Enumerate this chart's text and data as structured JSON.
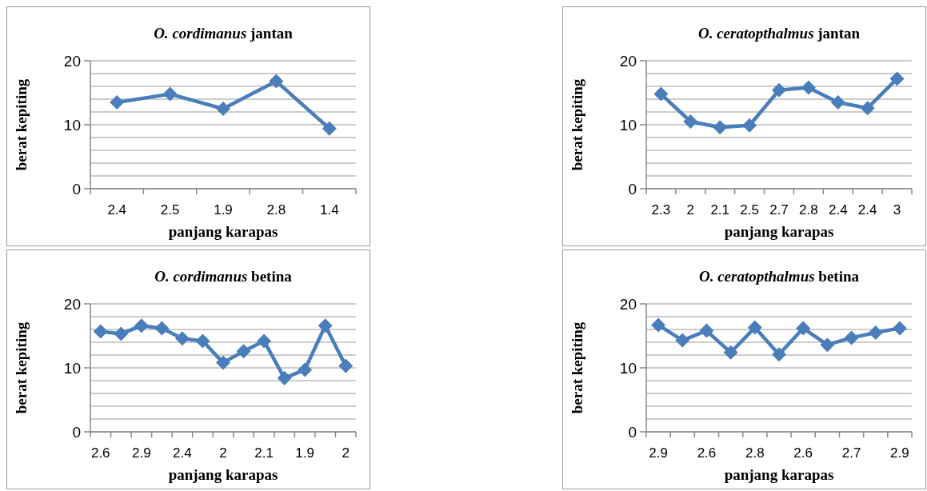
{
  "chart_data": [
    {
      "type": "line",
      "title": "O. cordimanus jantan",
      "xlabel": "panjang  karapas",
      "ylabel": "berat kepiting",
      "categories": [
        "2.4",
        "2.5",
        "1.9",
        "2.8",
        "1.4"
      ],
      "series": [
        {
          "color": "#4a7ebb",
          "values": [
            13.5,
            14.8,
            12.5,
            16.8,
            9.4
          ]
        }
      ],
      "ylim": [
        0,
        20
      ],
      "yticks": [
        0,
        {
          "value": 2,
          "label": null
        },
        {
          "value": 4,
          "label": null
        },
        {
          "value": 6,
          "label": null
        },
        {
          "value": 8,
          "label": null
        },
        10,
        {
          "value": 12,
          "label": null
        },
        {
          "value": 14,
          "label": null
        },
        {
          "value": 16,
          "label": null
        },
        {
          "value": 18,
          "label": null
        },
        20
      ],
      "grid": "y",
      "marker": "diamond",
      "line_style": "solid"
    },
    {
      "type": "line",
      "title": "O. ceratopthalmus jantan",
      "xlabel": "panjang karapas",
      "ylabel": "berat kepiting",
      "categories": [
        "2.3",
        "2",
        "2.1",
        "2.5",
        "2.7",
        "2.8",
        "2.4",
        "2.4",
        "3"
      ],
      "series": [
        {
          "color": "#4a7ebb",
          "values": [
            14.8,
            10.5,
            9.6,
            9.9,
            15.4,
            15.8,
            13.5,
            12.6,
            17.2
          ]
        }
      ],
      "ylim": [
        0,
        20
      ],
      "yticks": [
        0,
        {
          "value": 2,
          "label": null
        },
        {
          "value": 4,
          "label": null
        },
        {
          "value": 6,
          "label": null
        },
        {
          "value": 8,
          "label": null
        },
        10,
        {
          "value": 12,
          "label": null
        },
        {
          "value": 14,
          "label": null
        },
        {
          "value": 16,
          "label": null
        },
        {
          "value": 18,
          "label": null
        },
        20
      ],
      "grid": "y",
      "marker": "diamond",
      "line_style": "solid"
    },
    {
      "type": "line",
      "title": "O. cordimanus betina",
      "xlabel": "panjang karapas",
      "ylabel": "berat kepiting",
      "categories": [
        "2.6",
        null,
        "2.9",
        null,
        "2.4",
        null,
        "2",
        null,
        "2.1",
        null,
        "1.9",
        null,
        "2"
      ],
      "series": [
        {
          "color": "#4a7ebb",
          "values": [
            15.7,
            15.3,
            16.6,
            16.2,
            14.6,
            14.2,
            10.8,
            12.6,
            14.2,
            8.4,
            9.7,
            16.6,
            10.3
          ]
        }
      ],
      "ylim": [
        0,
        20
      ],
      "yticks": [
        0,
        {
          "value": 2,
          "label": null
        },
        {
          "value": 4,
          "label": null
        },
        {
          "value": 6,
          "label": null
        },
        {
          "value": 8,
          "label": null
        },
        10,
        {
          "value": 12,
          "label": null
        },
        {
          "value": 14,
          "label": null
        },
        {
          "value": 16,
          "label": null
        },
        {
          "value": 18,
          "label": null
        },
        20
      ],
      "grid": "y",
      "marker": "diamond",
      "line_style": "solid"
    },
    {
      "type": "line",
      "title": "O. ceratopthalmus betina",
      "xlabel": "panjang karapas",
      "ylabel": "berat kepiting",
      "categories": [
        "2.9",
        null,
        "2.6",
        null,
        "2.8",
        null,
        "2.6",
        null,
        "2.7",
        null,
        "2.9"
      ],
      "series": [
        {
          "color": "#4a7ebb",
          "values": [
            16.7,
            14.3,
            15.8,
            12.4,
            16.3,
            12.1,
            16.2,
            13.6,
            14.7,
            15.5,
            16.2
          ]
        }
      ],
      "ylim": [
        0,
        20
      ],
      "yticks": [
        0,
        {
          "value": 2,
          "label": null
        },
        {
          "value": 4,
          "label": null
        },
        {
          "value": 6,
          "label": null
        },
        {
          "value": 8,
          "label": null
        },
        10,
        {
          "value": 12,
          "label": null
        },
        {
          "value": 14,
          "label": null
        },
        {
          "value": 16,
          "label": null
        },
        {
          "value": 18,
          "label": null
        },
        20
      ],
      "grid": "y",
      "marker": "diamond",
      "line_style": "solid"
    }
  ]
}
